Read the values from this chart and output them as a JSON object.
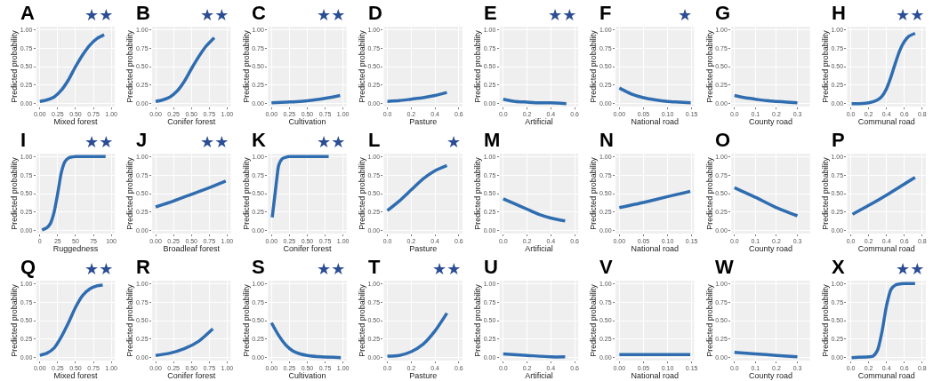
{
  "chart_data": [
    {
      "type": "line",
      "title": "A",
      "annotations": [
        "★★"
      ],
      "xlabel": "Mixed forest",
      "ylabel": "Predicted probability",
      "xlim": [
        -0.05,
        1.05
      ],
      "xticks": [
        {
          "value": 0,
          "label": "0.00"
        },
        {
          "value": 0.25,
          "label": "0.25"
        },
        {
          "value": 0.5,
          "label": "0.50"
        },
        {
          "value": 0.75,
          "label": "0.75"
        },
        {
          "value": 1,
          "label": "1.00"
        }
      ],
      "ylim": [
        -0.04,
        1.04
      ],
      "yticks": [
        {
          "value": 0,
          "label": "0.00"
        },
        {
          "value": 0.25,
          "label": "0.25"
        },
        {
          "value": 0.5,
          "label": "0.50"
        },
        {
          "value": 0.75,
          "label": "0.75"
        },
        {
          "value": 1,
          "label": "1.00"
        }
      ],
      "grid": true,
      "series": [
        {
          "color": "#2f6db0",
          "x": [
            0,
            0.1,
            0.2,
            0.3,
            0.4,
            0.5,
            0.6,
            0.7,
            0.8,
            0.9
          ],
          "values": [
            0.03,
            0.05,
            0.09,
            0.18,
            0.32,
            0.5,
            0.66,
            0.79,
            0.88,
            0.93
          ]
        }
      ]
    },
    {
      "type": "line",
      "title": "B",
      "annotations": [
        "★★"
      ],
      "xlabel": "Conifer forest",
      "ylabel": "Predicted probability",
      "xlim": [
        -0.05,
        1.05
      ],
      "xticks": [
        {
          "value": 0,
          "label": "0.00"
        },
        {
          "value": 0.25,
          "label": "0.25"
        },
        {
          "value": 0.5,
          "label": "0.50"
        },
        {
          "value": 0.75,
          "label": "0.75"
        },
        {
          "value": 1,
          "label": "1.00"
        }
      ],
      "ylim": [
        -0.04,
        1.04
      ],
      "yticks": [
        {
          "value": 0,
          "label": "0.00"
        },
        {
          "value": 0.25,
          "label": "0.25"
        },
        {
          "value": 0.5,
          "label": "0.50"
        },
        {
          "value": 0.75,
          "label": "0.75"
        },
        {
          "value": 1,
          "label": "1.00"
        }
      ],
      "grid": true,
      "series": [
        {
          "color": "#2f6db0",
          "x": [
            0,
            0.1,
            0.2,
            0.3,
            0.4,
            0.5,
            0.6,
            0.7,
            0.82
          ],
          "values": [
            0.03,
            0.05,
            0.09,
            0.17,
            0.3,
            0.47,
            0.63,
            0.77,
            0.89
          ]
        }
      ]
    },
    {
      "type": "line",
      "title": "C",
      "annotations": [
        "★★"
      ],
      "xlabel": "Cultivation",
      "ylabel": "Predicted probability",
      "xlim": [
        -0.05,
        1.05
      ],
      "xticks": [
        {
          "value": 0,
          "label": "0.00"
        },
        {
          "value": 0.25,
          "label": "0.25"
        },
        {
          "value": 0.5,
          "label": "0.50"
        },
        {
          "value": 0.75,
          "label": "0.75"
        },
        {
          "value": 1,
          "label": "1.00"
        }
      ],
      "ylim": [
        -0.04,
        1.04
      ],
      "yticks": [
        {
          "value": 0,
          "label": "0.00"
        },
        {
          "value": 0.25,
          "label": "0.25"
        },
        {
          "value": 0.5,
          "label": "0.50"
        },
        {
          "value": 0.75,
          "label": "0.75"
        },
        {
          "value": 1,
          "label": "1.00"
        }
      ],
      "grid": true,
      "series": [
        {
          "color": "#2f6db0",
          "x": [
            0,
            0.2,
            0.4,
            0.6,
            0.8,
            0.96
          ],
          "values": [
            0.01,
            0.02,
            0.03,
            0.05,
            0.08,
            0.11
          ]
        }
      ]
    },
    {
      "type": "line",
      "title": "D",
      "xlabel": "Pasture",
      "ylabel": "Predicted probability",
      "xlim": [
        -0.03,
        0.63
      ],
      "xticks": [
        {
          "value": 0,
          "label": "0.0"
        },
        0.2,
        0.4,
        0.6
      ],
      "ylim": [
        -0.04,
        1.04
      ],
      "yticks": [
        {
          "value": 0,
          "label": "0.00"
        },
        {
          "value": 0.25,
          "label": "0.25"
        },
        {
          "value": 0.5,
          "label": "0.50"
        },
        {
          "value": 0.75,
          "label": "0.75"
        },
        {
          "value": 1,
          "label": "1.00"
        }
      ],
      "grid": true,
      "series": [
        {
          "color": "#2f6db0",
          "x": [
            0,
            0.1,
            0.2,
            0.3,
            0.4,
            0.5
          ],
          "values": [
            0.03,
            0.04,
            0.06,
            0.08,
            0.11,
            0.15
          ]
        }
      ]
    },
    {
      "type": "line",
      "title": "E",
      "annotations": [
        "★★"
      ],
      "xlabel": "Artificial",
      "ylabel": "Predicted probability",
      "xlim": [
        -0.03,
        0.63
      ],
      "xticks": [
        {
          "value": 0,
          "label": "0.0"
        },
        0.2,
        0.4,
        0.6
      ],
      "ylim": [
        -0.04,
        1.04
      ],
      "yticks": [
        {
          "value": 0,
          "label": "0.00"
        },
        {
          "value": 0.25,
          "label": "0.25"
        },
        {
          "value": 0.5,
          "label": "0.50"
        },
        {
          "value": 0.75,
          "label": "0.75"
        },
        {
          "value": 1,
          "label": "1.00"
        }
      ],
      "grid": true,
      "series": [
        {
          "color": "#2f6db0",
          "x": [
            0,
            0.1,
            0.2,
            0.3,
            0.4,
            0.53
          ],
          "values": [
            0.06,
            0.03,
            0.02,
            0.01,
            0.01,
            0
          ]
        }
      ]
    },
    {
      "type": "line",
      "title": "F",
      "annotations": [
        "★"
      ],
      "xlabel": "National road",
      "ylabel": "Predicted probability",
      "xlim": [
        -0.008,
        0.155
      ],
      "xticks": [
        {
          "value": 0,
          "label": "0.00"
        },
        0.05,
        {
          "value": 0.1,
          "label": "0.10"
        },
        0.15
      ],
      "ylim": [
        -0.04,
        1.04
      ],
      "yticks": [
        {
          "value": 0,
          "label": "0.00"
        },
        {
          "value": 0.25,
          "label": "0.25"
        },
        {
          "value": 0.5,
          "label": "0.50"
        },
        {
          "value": 0.75,
          "label": "0.75"
        },
        {
          "value": 1,
          "label": "1.00"
        }
      ],
      "grid": true,
      "series": [
        {
          "color": "#2f6db0",
          "x": [
            0,
            0.025,
            0.05,
            0.075,
            0.1,
            0.125,
            0.148
          ],
          "values": [
            0.21,
            0.13,
            0.08,
            0.05,
            0.03,
            0.02,
            0.01
          ]
        }
      ]
    },
    {
      "type": "line",
      "title": "G",
      "xlabel": "County road",
      "ylabel": "Predicted probability",
      "xlim": [
        -0.015,
        0.36
      ],
      "xticks": [
        {
          "value": 0,
          "label": "0.0"
        },
        0.1,
        0.2,
        0.3
      ],
      "ylim": [
        -0.04,
        1.04
      ],
      "yticks": [
        {
          "value": 0,
          "label": "0.00"
        },
        {
          "value": 0.25,
          "label": "0.25"
        },
        {
          "value": 0.5,
          "label": "0.50"
        },
        {
          "value": 0.75,
          "label": "0.75"
        },
        {
          "value": 1,
          "label": "1.00"
        }
      ],
      "grid": true,
      "series": [
        {
          "color": "#2f6db0",
          "x": [
            0,
            0.05,
            0.1,
            0.15,
            0.2,
            0.25,
            0.3
          ],
          "values": [
            0.11,
            0.08,
            0.06,
            0.04,
            0.03,
            0.02,
            0.01
          ]
        }
      ]
    },
    {
      "type": "line",
      "title": "H",
      "annotations": [
        "★★"
      ],
      "xlabel": "Communal road",
      "ylabel": "Predicted probability",
      "xlim": [
        -0.04,
        0.84
      ],
      "xticks": [
        {
          "value": 0,
          "label": "0.0"
        },
        0.2,
        0.4,
        0.6,
        0.8
      ],
      "ylim": [
        -0.04,
        1.04
      ],
      "yticks": [
        {
          "value": 0,
          "label": "0.00"
        },
        {
          "value": 0.25,
          "label": "0.25"
        },
        {
          "value": 0.5,
          "label": "0.50"
        },
        {
          "value": 0.75,
          "label": "0.75"
        },
        {
          "value": 1,
          "label": "1.00"
        }
      ],
      "grid": true,
      "series": [
        {
          "color": "#2f6db0",
          "x": [
            0.01,
            0.1,
            0.2,
            0.3,
            0.35,
            0.4,
            0.45,
            0.5,
            0.55,
            0.6,
            0.65,
            0.72
          ],
          "values": [
            0,
            0,
            0.01,
            0.05,
            0.1,
            0.2,
            0.36,
            0.55,
            0.72,
            0.84,
            0.91,
            0.95
          ]
        }
      ]
    },
    {
      "type": "line",
      "title": "I",
      "annotations": [
        "★★"
      ],
      "xlabel": "Ruggedness",
      "ylabel": "Predicted probability",
      "xlim": [
        -5,
        105
      ],
      "xticks": [
        0,
        25,
        50,
        75,
        100
      ],
      "ylim": [
        -0.04,
        1.04
      ],
      "yticks": [
        {
          "value": 0,
          "label": "0.00"
        },
        {
          "value": 0.25,
          "label": "0.25"
        },
        {
          "value": 0.5,
          "label": "0.50"
        },
        {
          "value": 0.75,
          "label": "0.75"
        },
        {
          "value": 1,
          "label": "1.00"
        }
      ],
      "grid": true,
      "series": [
        {
          "color": "#2f6db0",
          "x": [
            3,
            10,
            15,
            20,
            25,
            30,
            35,
            40,
            50,
            60,
            92
          ],
          "values": [
            0.01,
            0.04,
            0.1,
            0.25,
            0.5,
            0.78,
            0.93,
            0.98,
            1,
            1,
            1
          ]
        }
      ]
    },
    {
      "type": "line",
      "title": "J",
      "annotations": [
        "★★"
      ],
      "xlabel": "Broadleaf forest",
      "ylabel": "Predicted probability",
      "xlim": [
        -0.05,
        1.05
      ],
      "xticks": [
        {
          "value": 0,
          "label": "0.00"
        },
        {
          "value": 0.25,
          "label": "0.25"
        },
        {
          "value": 0.5,
          "label": "0.50"
        },
        {
          "value": 0.75,
          "label": "0.75"
        },
        {
          "value": 1,
          "label": "1.00"
        }
      ],
      "ylim": [
        -0.04,
        1.04
      ],
      "yticks": [
        {
          "value": 0,
          "label": "0.00"
        },
        {
          "value": 0.25,
          "label": "0.25"
        },
        {
          "value": 0.5,
          "label": "0.50"
        },
        {
          "value": 0.75,
          "label": "0.75"
        },
        {
          "value": 1,
          "label": "1.00"
        }
      ],
      "grid": true,
      "series": [
        {
          "color": "#2f6db0",
          "x": [
            0,
            0.25,
            0.5,
            0.75,
            0.98
          ],
          "values": [
            0.32,
            0.4,
            0.49,
            0.58,
            0.67
          ]
        }
      ]
    },
    {
      "type": "line",
      "title": "K",
      "annotations": [
        "★★"
      ],
      "xlabel": "Conifer forest",
      "ylabel": "Predicted probability",
      "xlim": [
        -0.05,
        1.05
      ],
      "xticks": [
        {
          "value": 0,
          "label": "0.00"
        },
        {
          "value": 0.25,
          "label": "0.25"
        },
        {
          "value": 0.5,
          "label": "0.50"
        },
        {
          "value": 0.75,
          "label": "0.75"
        },
        {
          "value": 1,
          "label": "1.00"
        }
      ],
      "ylim": [
        -0.04,
        1.04
      ],
      "yticks": [
        {
          "value": 0,
          "label": "0.00"
        },
        {
          "value": 0.25,
          "label": "0.25"
        },
        {
          "value": 0.5,
          "label": "0.50"
        },
        {
          "value": 0.75,
          "label": "0.75"
        },
        {
          "value": 1,
          "label": "1.00"
        }
      ],
      "grid": true,
      "series": [
        {
          "color": "#2f6db0",
          "x": [
            0.01,
            0.05,
            0.08,
            0.1,
            0.15,
            0.2,
            0.25,
            0.5,
            0.8
          ],
          "values": [
            0.18,
            0.5,
            0.75,
            0.88,
            0.97,
            0.99,
            1,
            1,
            1
          ]
        }
      ]
    },
    {
      "type": "line",
      "title": "L",
      "annotations": [
        "★"
      ],
      "xlabel": "Pasture",
      "ylabel": "Predicted probability",
      "xlim": [
        -0.03,
        0.63
      ],
      "xticks": [
        {
          "value": 0,
          "label": "0.0"
        },
        0.2,
        0.4,
        0.6
      ],
      "ylim": [
        -0.04,
        1.04
      ],
      "yticks": [
        {
          "value": 0,
          "label": "0.00"
        },
        {
          "value": 0.25,
          "label": "0.25"
        },
        {
          "value": 0.5,
          "label": "0.50"
        },
        {
          "value": 0.75,
          "label": "0.75"
        },
        {
          "value": 1,
          "label": "1.00"
        }
      ],
      "grid": true,
      "series": [
        {
          "color": "#2f6db0",
          "x": [
            0,
            0.1,
            0.2,
            0.3,
            0.4,
            0.5
          ],
          "values": [
            0.27,
            0.4,
            0.55,
            0.7,
            0.81,
            0.88
          ]
        }
      ]
    },
    {
      "type": "line",
      "title": "M",
      "xlabel": "Artificial",
      "ylabel": "Predicted probability",
      "xlim": [
        -0.03,
        0.63
      ],
      "xticks": [
        {
          "value": 0,
          "label": "0.0"
        },
        0.2,
        0.4,
        0.6
      ],
      "ylim": [
        -0.04,
        1.04
      ],
      "yticks": [
        {
          "value": 0,
          "label": "0.00"
        },
        {
          "value": 0.25,
          "label": "0.25"
        },
        {
          "value": 0.5,
          "label": "0.50"
        },
        {
          "value": 0.75,
          "label": "0.75"
        },
        {
          "value": 1,
          "label": "1.00"
        }
      ],
      "grid": true,
      "series": [
        {
          "color": "#2f6db0",
          "x": [
            0,
            0.1,
            0.2,
            0.3,
            0.4,
            0.52
          ],
          "values": [
            0.43,
            0.36,
            0.29,
            0.22,
            0.17,
            0.13
          ]
        }
      ]
    },
    {
      "type": "line",
      "title": "N",
      "xlabel": "National road",
      "ylabel": "Predicted probability",
      "xlim": [
        -0.008,
        0.155
      ],
      "xticks": [
        {
          "value": 0,
          "label": "0.00"
        },
        0.05,
        {
          "value": 0.1,
          "label": "0.10"
        },
        0.15
      ],
      "ylim": [
        -0.04,
        1.04
      ],
      "yticks": [
        {
          "value": 0,
          "label": "0.00"
        },
        {
          "value": 0.25,
          "label": "0.25"
        },
        {
          "value": 0.5,
          "label": "0.50"
        },
        {
          "value": 0.75,
          "label": "0.75"
        },
        {
          "value": 1,
          "label": "1.00"
        }
      ],
      "grid": true,
      "series": [
        {
          "color": "#2f6db0",
          "x": [
            0,
            0.05,
            0.1,
            0.147
          ],
          "values": [
            0.31,
            0.38,
            0.46,
            0.53
          ]
        }
      ]
    },
    {
      "type": "line",
      "title": "O",
      "xlabel": "County road",
      "ylabel": "Predicted probability",
      "xlim": [
        -0.015,
        0.36
      ],
      "xticks": [
        {
          "value": 0,
          "label": "0.0"
        },
        0.1,
        0.2,
        0.3
      ],
      "ylim": [
        -0.04,
        1.04
      ],
      "yticks": [
        {
          "value": 0,
          "label": "0.00"
        },
        {
          "value": 0.25,
          "label": "0.25"
        },
        {
          "value": 0.5,
          "label": "0.50"
        },
        {
          "value": 0.75,
          "label": "0.75"
        },
        {
          "value": 1,
          "label": "1.00"
        }
      ],
      "grid": true,
      "series": [
        {
          "color": "#2f6db0",
          "x": [
            0,
            0.1,
            0.2,
            0.3
          ],
          "values": [
            0.58,
            0.45,
            0.31,
            0.2
          ]
        }
      ]
    },
    {
      "type": "line",
      "title": "P",
      "xlabel": "Communal road",
      "ylabel": "Predicted probability",
      "xlim": [
        -0.04,
        0.84
      ],
      "xticks": [
        {
          "value": 0,
          "label": "0.0"
        },
        0.2,
        0.4,
        0.6,
        0.8
      ],
      "ylim": [
        -0.04,
        1.04
      ],
      "yticks": [
        {
          "value": 0,
          "label": "0.00"
        },
        {
          "value": 0.25,
          "label": "0.25"
        },
        {
          "value": 0.5,
          "label": "0.50"
        },
        {
          "value": 0.75,
          "label": "0.75"
        },
        {
          "value": 1,
          "label": "1.00"
        }
      ],
      "grid": true,
      "series": [
        {
          "color": "#2f6db0",
          "x": [
            0.02,
            0.2,
            0.4,
            0.6,
            0.72
          ],
          "values": [
            0.22,
            0.34,
            0.48,
            0.63,
            0.72
          ]
        }
      ]
    },
    {
      "type": "line",
      "title": "Q",
      "annotations": [
        "★★"
      ],
      "xlabel": "Mixed forest",
      "ylabel": "Predicted probability",
      "xlim": [
        -0.05,
        1.05
      ],
      "xticks": [
        {
          "value": 0,
          "label": "0.00"
        },
        {
          "value": 0.25,
          "label": "0.25"
        },
        {
          "value": 0.5,
          "label": "0.50"
        },
        {
          "value": 0.75,
          "label": "0.75"
        },
        {
          "value": 1,
          "label": "1.00"
        }
      ],
      "ylim": [
        -0.04,
        1.04
      ],
      "yticks": [
        {
          "value": 0,
          "label": "0.00"
        },
        {
          "value": 0.25,
          "label": "0.25"
        },
        {
          "value": 0.5,
          "label": "0.50"
        },
        {
          "value": 0.75,
          "label": "0.75"
        },
        {
          "value": 1,
          "label": "1.00"
        }
      ],
      "grid": true,
      "series": [
        {
          "color": "#2f6db0",
          "x": [
            0,
            0.1,
            0.2,
            0.3,
            0.4,
            0.5,
            0.6,
            0.7,
            0.8,
            0.88
          ],
          "values": [
            0.03,
            0.06,
            0.13,
            0.28,
            0.47,
            0.68,
            0.84,
            0.93,
            0.97,
            0.98
          ]
        }
      ]
    },
    {
      "type": "line",
      "title": "R",
      "xlabel": "Conifer forest",
      "ylabel": "Predicted probability",
      "xlim": [
        -0.05,
        1.05
      ],
      "xticks": [
        {
          "value": 0,
          "label": "0.00"
        },
        {
          "value": 0.25,
          "label": "0.25"
        },
        {
          "value": 0.5,
          "label": "0.50"
        },
        {
          "value": 0.75,
          "label": "0.75"
        },
        {
          "value": 1,
          "label": "1.00"
        }
      ],
      "ylim": [
        -0.04,
        1.04
      ],
      "yticks": [
        {
          "value": 0,
          "label": "0.00"
        },
        {
          "value": 0.25,
          "label": "0.25"
        },
        {
          "value": 0.5,
          "label": "0.50"
        },
        {
          "value": 0.75,
          "label": "0.75"
        },
        {
          "value": 1,
          "label": "1.00"
        }
      ],
      "grid": true,
      "series": [
        {
          "color": "#2f6db0",
          "x": [
            0,
            0.2,
            0.4,
            0.6,
            0.8
          ],
          "values": [
            0.03,
            0.06,
            0.12,
            0.22,
            0.39
          ]
        }
      ]
    },
    {
      "type": "line",
      "title": "S",
      "annotations": [
        "★★"
      ],
      "xlabel": "Cultivation",
      "ylabel": "Predicted probability",
      "xlim": [
        -0.05,
        1.05
      ],
      "xticks": [
        {
          "value": 0,
          "label": "0.00"
        },
        {
          "value": 0.25,
          "label": "0.25"
        },
        {
          "value": 0.5,
          "label": "0.50"
        },
        {
          "value": 0.75,
          "label": "0.75"
        },
        {
          "value": 1,
          "label": "1.00"
        }
      ],
      "ylim": [
        -0.04,
        1.04
      ],
      "yticks": [
        {
          "value": 0,
          "label": "0.00"
        },
        {
          "value": 0.25,
          "label": "0.25"
        },
        {
          "value": 0.5,
          "label": "0.50"
        },
        {
          "value": 0.75,
          "label": "0.75"
        },
        {
          "value": 1,
          "label": "1.00"
        }
      ],
      "grid": true,
      "series": [
        {
          "color": "#2f6db0",
          "x": [
            0,
            0.1,
            0.2,
            0.3,
            0.4,
            0.5,
            0.7,
            0.97
          ],
          "values": [
            0.47,
            0.3,
            0.17,
            0.09,
            0.05,
            0.03,
            0.01,
            0
          ]
        }
      ]
    },
    {
      "type": "line",
      "title": "T",
      "annotations": [
        "★★"
      ],
      "xlabel": "Pasture",
      "ylabel": "Predicted probability",
      "xlim": [
        -0.03,
        0.63
      ],
      "xticks": [
        {
          "value": 0,
          "label": "0.0"
        },
        0.2,
        0.4,
        0.6
      ],
      "ylim": [
        -0.04,
        1.04
      ],
      "yticks": [
        {
          "value": 0,
          "label": "0.00"
        },
        {
          "value": 0.25,
          "label": "0.25"
        },
        {
          "value": 0.5,
          "label": "0.50"
        },
        {
          "value": 0.75,
          "label": "0.75"
        },
        {
          "value": 1,
          "label": "1.00"
        }
      ],
      "grid": true,
      "series": [
        {
          "color": "#2f6db0",
          "x": [
            0,
            0.1,
            0.2,
            0.3,
            0.4,
            0.5
          ],
          "values": [
            0.02,
            0.03,
            0.08,
            0.18,
            0.36,
            0.6
          ]
        }
      ]
    },
    {
      "type": "line",
      "title": "U",
      "xlabel": "Artificial",
      "ylabel": "Predicted probability",
      "xlim": [
        -0.03,
        0.63
      ],
      "xticks": [
        {
          "value": 0,
          "label": "0.0"
        },
        0.2,
        0.4,
        0.6
      ],
      "ylim": [
        -0.04,
        1.04
      ],
      "yticks": [
        {
          "value": 0,
          "label": "0.00"
        },
        {
          "value": 0.25,
          "label": "0.25"
        },
        {
          "value": 0.5,
          "label": "0.50"
        },
        {
          "value": 0.75,
          "label": "0.75"
        },
        {
          "value": 1,
          "label": "1.00"
        }
      ],
      "grid": true,
      "series": [
        {
          "color": "#2f6db0",
          "x": [
            0,
            0.2,
            0.4,
            0.52
          ],
          "values": [
            0.05,
            0.03,
            0.01,
            0.01
          ]
        }
      ]
    },
    {
      "type": "line",
      "title": "V",
      "xlabel": "National road",
      "ylabel": "Predicted probability",
      "xlim": [
        -0.008,
        0.155
      ],
      "xticks": [
        {
          "value": 0,
          "label": "0.00"
        },
        0.05,
        {
          "value": 0.1,
          "label": "0.10"
        },
        0.15
      ],
      "ylim": [
        -0.04,
        1.04
      ],
      "yticks": [
        {
          "value": 0,
          "label": "0.00"
        },
        {
          "value": 0.25,
          "label": "0.25"
        },
        {
          "value": 0.5,
          "label": "0.50"
        },
        {
          "value": 0.75,
          "label": "0.75"
        },
        {
          "value": 1,
          "label": "1.00"
        }
      ],
      "grid": true,
      "series": [
        {
          "color": "#2f6db0",
          "x": [
            0,
            0.147
          ],
          "values": [
            0.04,
            0.04
          ]
        }
      ]
    },
    {
      "type": "line",
      "title": "W",
      "xlabel": "County road",
      "ylabel": "Predicted probability",
      "xlim": [
        -0.015,
        0.36
      ],
      "xticks": [
        {
          "value": 0,
          "label": "0.0"
        },
        0.1,
        0.2,
        0.3
      ],
      "ylim": [
        -0.04,
        1.04
      ],
      "yticks": [
        {
          "value": 0,
          "label": "0.00"
        },
        {
          "value": 0.25,
          "label": "0.25"
        },
        {
          "value": 0.5,
          "label": "0.50"
        },
        {
          "value": 0.75,
          "label": "0.75"
        },
        {
          "value": 1,
          "label": "1.00"
        }
      ],
      "grid": true,
      "series": [
        {
          "color": "#2f6db0",
          "x": [
            0,
            0.1,
            0.2,
            0.3
          ],
          "values": [
            0.07,
            0.05,
            0.03,
            0.01
          ]
        }
      ]
    },
    {
      "type": "line",
      "title": "X",
      "annotations": [
        "★★"
      ],
      "xlabel": "Communal road",
      "ylabel": "Predicted probability",
      "xlim": [
        -0.04,
        0.84
      ],
      "xticks": [
        {
          "value": 0,
          "label": "0.0"
        },
        0.2,
        0.4,
        0.6,
        0.8
      ],
      "ylim": [
        -0.04,
        1.04
      ],
      "yticks": [
        {
          "value": 0,
          "label": "0.00"
        },
        {
          "value": 0.25,
          "label": "0.25"
        },
        {
          "value": 0.5,
          "label": "0.50"
        },
        {
          "value": 0.75,
          "label": "0.75"
        },
        {
          "value": 1,
          "label": "1.00"
        }
      ],
      "grid": true,
      "series": [
        {
          "color": "#2f6db0",
          "x": [
            0.01,
            0.2,
            0.25,
            0.3,
            0.35,
            0.4,
            0.45,
            0.5,
            0.6,
            0.72
          ],
          "values": [
            0,
            0.01,
            0.02,
            0.1,
            0.35,
            0.7,
            0.92,
            0.98,
            1,
            1
          ]
        }
      ]
    }
  ]
}
